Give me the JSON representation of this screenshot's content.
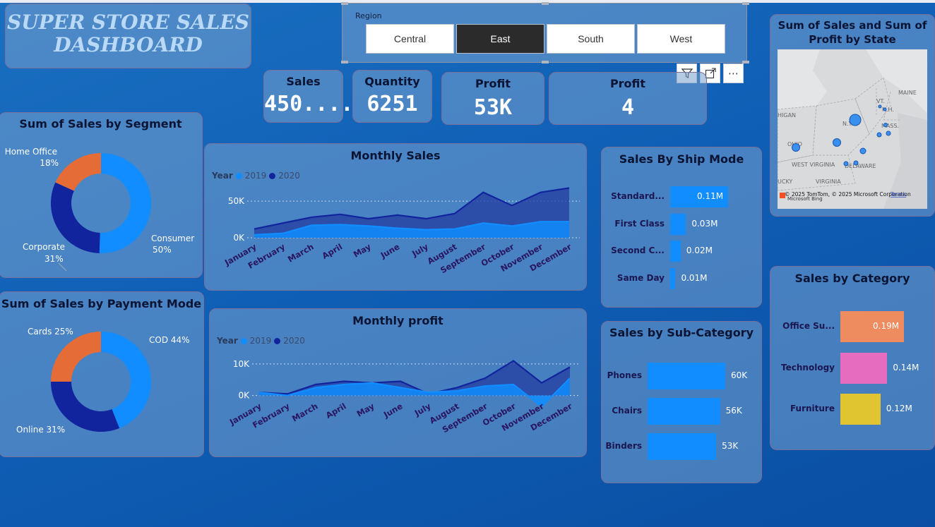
{
  "title": "SUPER STORE SALES DASHBOARD",
  "region_slicer": {
    "label": "Region",
    "options": [
      "Central",
      "East",
      "South",
      "West"
    ],
    "selected": "East"
  },
  "toolbar": {
    "filter_icon": "filter-icon",
    "focus_icon": "focus-mode-icon",
    "more_icon": "more-options-icon",
    "more_glyph": "⋯"
  },
  "kpis": [
    {
      "label": "Sales",
      "value": "450...."
    },
    {
      "label": "Quantity",
      "value": "6251"
    },
    {
      "label": "Profit",
      "value": "53K"
    },
    {
      "label": "Profit",
      "value": "4"
    }
  ],
  "segment_chart": {
    "title": "Sum of Sales by Segment",
    "slices": [
      {
        "name": "Consumer",
        "pct": "50%",
        "value": 50,
        "color": "#118dff"
      },
      {
        "name": "Corporate",
        "pct": "31%",
        "value": 31,
        "color": "#12239e"
      },
      {
        "name": "Home Office",
        "pct": "18%",
        "value": 18,
        "color": "#e66c37"
      }
    ]
  },
  "payment_chart": {
    "title": "Sum of Sales by Payment Mode",
    "slices": [
      {
        "name": "COD 44%",
        "value": 44,
        "color": "#118dff"
      },
      {
        "name": "Online 31%",
        "value": 31,
        "color": "#12239e"
      },
      {
        "name": "Cards 25%",
        "value": 25,
        "color": "#e66c37"
      }
    ]
  },
  "chart_data": [
    {
      "type": "area",
      "title": "Monthly Sales",
      "legend_title": "Year",
      "categories": [
        "January",
        "February",
        "March",
        "April",
        "May",
        "June",
        "July",
        "August",
        "September",
        "October",
        "November",
        "December"
      ],
      "series": [
        {
          "name": "2019",
          "color": "#118dff",
          "values": [
            4000,
            6000,
            17000,
            18000,
            16000,
            13000,
            11000,
            12000,
            20000,
            16000,
            22000,
            22000
          ]
        },
        {
          "name": "2020",
          "color": "#12239e",
          "values": [
            12000,
            20000,
            28000,
            32000,
            26000,
            31000,
            26000,
            33000,
            62000,
            44000,
            62000,
            68000
          ]
        }
      ],
      "yticks": [
        "0K",
        "50K"
      ],
      "ylim": [
        0,
        80000
      ]
    },
    {
      "type": "area",
      "title": "Monthly profit",
      "legend_title": "Year",
      "categories": [
        "January",
        "February",
        "March",
        "April",
        "May",
        "June",
        "July",
        "August",
        "September",
        "October",
        "November",
        "December"
      ],
      "series": [
        {
          "name": "2019",
          "color": "#118dff",
          "values": [
            1000,
            0,
            2500,
            3500,
            4000,
            2500,
            1000,
            1500,
            3000,
            3500,
            -3500,
            5500
          ]
        },
        {
          "name": "2020",
          "color": "#12239e",
          "values": [
            1000,
            500,
            3500,
            4500,
            4000,
            4500,
            500,
            2500,
            5500,
            11000,
            4000,
            9000
          ]
        }
      ],
      "yticks": [
        "0K",
        "10K"
      ],
      "ylim": [
        -5000,
        14000
      ]
    },
    {
      "type": "bar",
      "title": "Sales By Ship Mode",
      "categories": [
        "Standard...",
        "First Class",
        "Second C...",
        "Same Day"
      ],
      "values": [
        0.11,
        0.03,
        0.02,
        0.01
      ],
      "labels": [
        "0.11M",
        "0.03M",
        "0.02M",
        "0.01M"
      ],
      "color": "#118dff"
    },
    {
      "type": "bar",
      "title": "Sales by Sub-Category",
      "categories": [
        "Phones",
        "Chairs",
        "Binders"
      ],
      "values": [
        60,
        56,
        53
      ],
      "labels": [
        "60K",
        "56K",
        "53K"
      ],
      "color": "#118dff"
    },
    {
      "type": "bar",
      "title": "Sales by Category",
      "categories": [
        "Office Su...",
        "Technology",
        "Furniture"
      ],
      "values": [
        0.19,
        0.14,
        0.12
      ],
      "labels": [
        "0.19M",
        "0.14M",
        "0.12M"
      ],
      "colors": [
        "#ee8c60",
        "#e66cc0",
        "#e0c430"
      ]
    }
  ],
  "map": {
    "title": "Sum of Sales and Sum of Profit by State",
    "labels": [
      "MAINE",
      "VT.",
      "N.H.",
      "N.Y.",
      "MASS.",
      "HIGAN",
      "OHIO",
      "WEST VIRGINIA",
      "DELAWARE",
      "VIRGINIA",
      "UCKY"
    ],
    "attribution": "© 2025 TomTom, © 2025 Microsoft Corporation",
    "terms": "Terms",
    "bing": "Microsoft Bing"
  }
}
